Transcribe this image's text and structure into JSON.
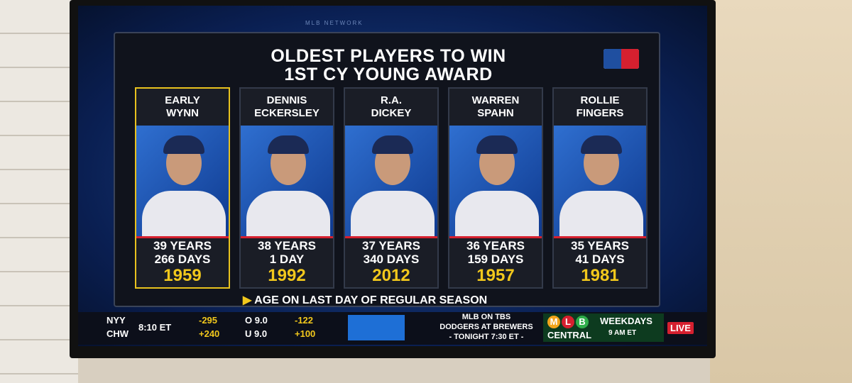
{
  "header": {
    "title_line1": "OLDEST PLAYERS TO WIN",
    "title_line2": "1ST CY YOUNG AWARD",
    "network": "MLB NETWORK"
  },
  "players": [
    {
      "name_line1": "EARLY",
      "name_line2": "WYNN",
      "age_years": "39 YEARS",
      "age_days": "266 DAYS",
      "year": "1959"
    },
    {
      "name_line1": "DENNIS",
      "name_line2": "ECKERSLEY",
      "age_years": "38 YEARS",
      "age_days": "1 DAY",
      "year": "1992"
    },
    {
      "name_line1": "R.A.",
      "name_line2": "DICKEY",
      "age_years": "37 YEARS",
      "age_days": "340 DAYS",
      "year": "2012"
    },
    {
      "name_line1": "WARREN",
      "name_line2": "SPAHN",
      "age_years": "36 YEARS",
      "age_days": "159 DAYS",
      "year": "1957"
    },
    {
      "name_line1": "ROLLIE",
      "name_line2": "FINGERS",
      "age_years": "35 YEARS",
      "age_days": "41 DAYS",
      "year": "1981"
    }
  ],
  "footnote": "AGE ON LAST DAY OF REGULAR SEASON",
  "ticker": {
    "teams": [
      "NYY",
      "CHW"
    ],
    "time": "8:10 ET",
    "moneyline": [
      "-295",
      "+240"
    ],
    "totals": [
      "O 9.0",
      "U 9.0"
    ],
    "total_odds": [
      "-122",
      "+100"
    ],
    "promo": [
      "MLB ON TBS",
      "DODGERS AT BREWERS",
      "- TONIGHT 7:30 ET -"
    ],
    "show_letters": [
      "M",
      "L",
      "B"
    ],
    "show": "CENTRAL",
    "schedule": "WEEKDAYS",
    "schedule_time": "9 AM ET",
    "live": "LIVE"
  }
}
